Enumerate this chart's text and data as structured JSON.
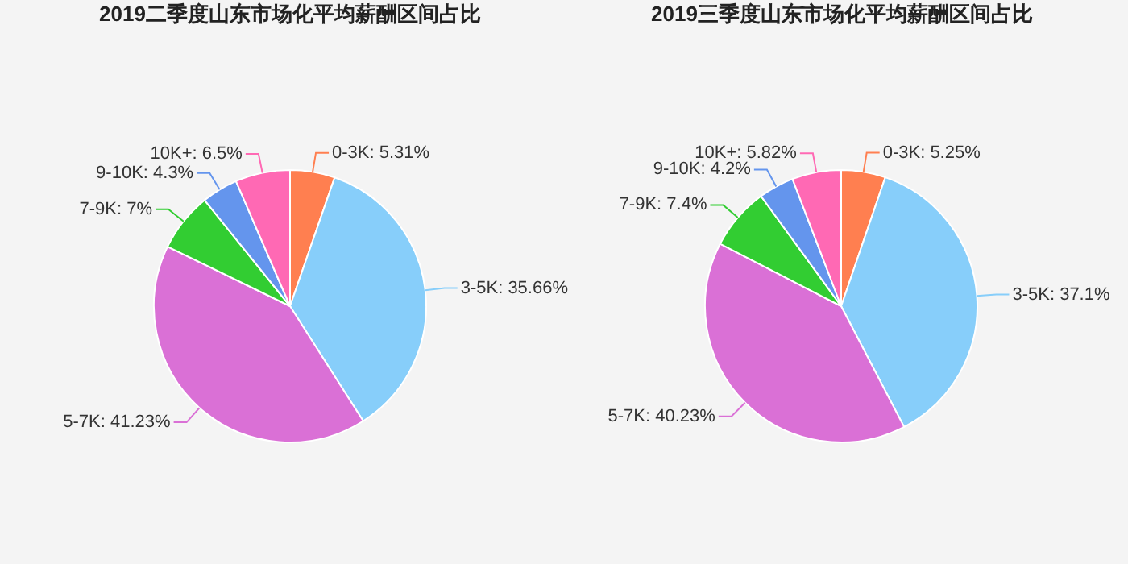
{
  "chart_data": [
    {
      "type": "pie",
      "title": "2019二季度山东市场化平均薪酬区间占比",
      "categories": [
        "0-3K",
        "3-5K",
        "5-7K",
        "7-9K",
        "9-10K",
        "10K+"
      ],
      "values": [
        5.31,
        35.66,
        41.23,
        7,
        4.3,
        6.5
      ],
      "value_labels": [
        "5.31%",
        "35.66%",
        "41.23%",
        "7%",
        "4.3%",
        "6.5%"
      ],
      "colors": [
        "#ff7f50",
        "#87cefa",
        "#da70d6",
        "#32cd32",
        "#6495ed",
        "#ff69b4"
      ],
      "legend": false
    },
    {
      "type": "pie",
      "title": "2019三季度山东市场化平均薪酬区间占比",
      "categories": [
        "0-3K",
        "3-5K",
        "5-7K",
        "7-9K",
        "9-10K",
        "10K+"
      ],
      "values": [
        5.25,
        37.1,
        40.23,
        7.4,
        4.2,
        5.82
      ],
      "value_labels": [
        "5.25%",
        "37.1%",
        "40.23%",
        "7.4%",
        "4.2%",
        "5.82%"
      ],
      "colors": [
        "#ff7f50",
        "#87cefa",
        "#da70d6",
        "#32cd32",
        "#6495ed",
        "#ff69b4"
      ],
      "legend": false
    }
  ]
}
